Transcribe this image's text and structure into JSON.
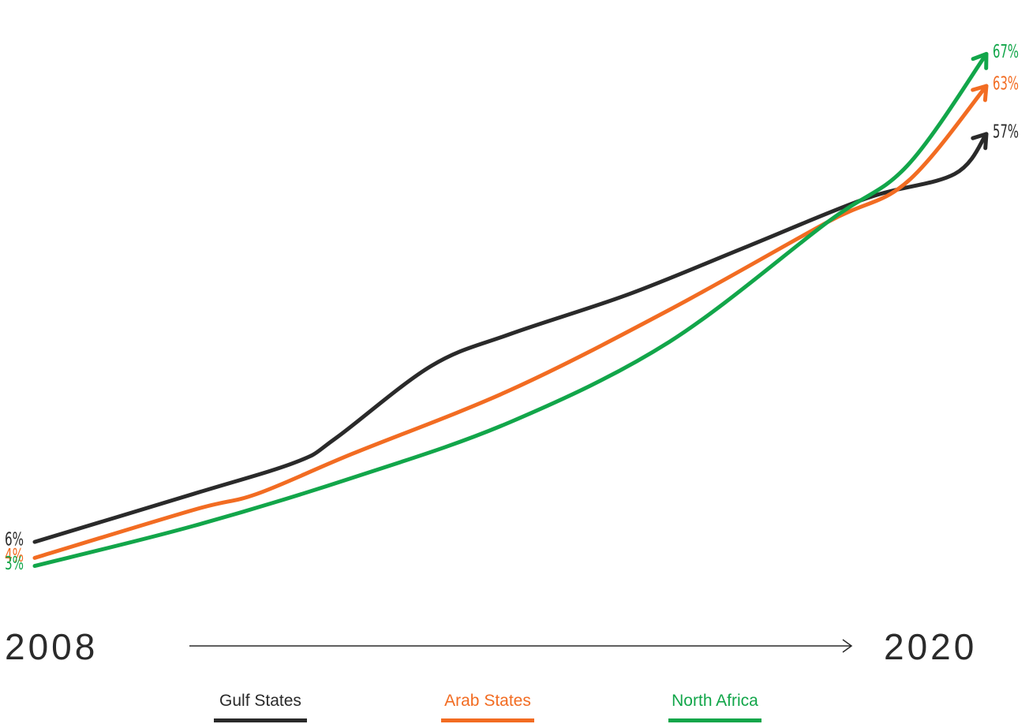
{
  "chart_data": {
    "type": "line",
    "x": [
      "2008",
      "2020"
    ],
    "series": [
      {
        "name": "Gulf States",
        "color": "#2a2a2a",
        "start_label": "6%",
        "end_label": "57%",
        "values": [
          {
            "year": 2008.0,
            "pct": 6
          },
          {
            "year": 2010.0,
            "pct": 12
          },
          {
            "year": 2011.3,
            "pct": 16
          },
          {
            "year": 2011.8,
            "pct": 19
          },
          {
            "year": 2013.0,
            "pct": 28
          },
          {
            "year": 2014.0,
            "pct": 32
          },
          {
            "year": 2015.5,
            "pct": 37
          },
          {
            "year": 2017.0,
            "pct": 43
          },
          {
            "year": 2018.5,
            "pct": 49
          },
          {
            "year": 2019.6,
            "pct": 52
          },
          {
            "year": 2020.0,
            "pct": 57
          }
        ]
      },
      {
        "name": "Arab States",
        "color": "#f26c22",
        "start_label": "4%",
        "end_label": "63%",
        "values": [
          {
            "year": 2008.0,
            "pct": 4
          },
          {
            "year": 2010.0,
            "pct": 10
          },
          {
            "year": 2010.8,
            "pct": 12
          },
          {
            "year": 2012.0,
            "pct": 17
          },
          {
            "year": 2014.0,
            "pct": 25
          },
          {
            "year": 2016.0,
            "pct": 35
          },
          {
            "year": 2018.0,
            "pct": 46
          },
          {
            "year": 2019.0,
            "pct": 51
          },
          {
            "year": 2020.0,
            "pct": 63
          }
        ]
      },
      {
        "name": "North Africa",
        "color": "#12a64a",
        "start_label": "3%",
        "end_label": "67%",
        "values": [
          {
            "year": 2008.0,
            "pct": 3
          },
          {
            "year": 2010.0,
            "pct": 8
          },
          {
            "year": 2012.0,
            "pct": 14
          },
          {
            "year": 2014.0,
            "pct": 21
          },
          {
            "year": 2016.0,
            "pct": 31
          },
          {
            "year": 2018.0,
            "pct": 46
          },
          {
            "year": 2019.0,
            "pct": 53
          },
          {
            "year": 2020.0,
            "pct": 67
          }
        ]
      }
    ],
    "x_start": "2008",
    "x_end": "2020",
    "ylim": [
      0,
      70
    ],
    "grid": false,
    "legend_position": "bottom-center"
  }
}
